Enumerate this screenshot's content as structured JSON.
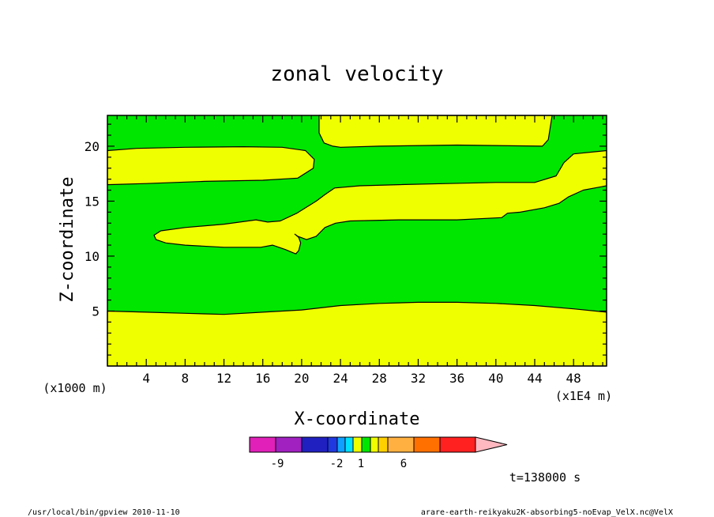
{
  "chart_data": {
    "type": "heatmap",
    "title": "zonal velocity",
    "xlabel": "X-coordinate",
    "ylabel": "Z-coordinate",
    "x_unit": "(x1000 m)",
    "x_scale": "(x1E4 m)",
    "xlim": [
      0,
      51.4
    ],
    "ylim": [
      0,
      22.8
    ],
    "x_ticks": [
      "4",
      "8",
      "12",
      "16",
      "20",
      "24",
      "28",
      "32",
      "36",
      "40",
      "44",
      "48"
    ],
    "y_ticks": [
      "5",
      "10",
      "15",
      "20"
    ],
    "fill_colors": {
      "background": "#00e600",
      "band": "#f0ff00"
    },
    "regions": [
      {
        "name": "top-band",
        "points": [
          [
            21.8,
            22.8
          ],
          [
            45.8,
            22.8
          ],
          [
            45.4,
            20.6
          ],
          [
            44.8,
            20.0
          ],
          [
            36,
            20.1
          ],
          [
            28,
            20.0
          ],
          [
            24,
            19.9
          ],
          [
            23.2,
            20.0
          ],
          [
            22.3,
            20.3
          ],
          [
            21.8,
            21.2
          ]
        ]
      },
      {
        "name": "upper-left-band",
        "points": [
          [
            0,
            19.6
          ],
          [
            3,
            19.8
          ],
          [
            8,
            19.9
          ],
          [
            14,
            19.95
          ],
          [
            18,
            19.9
          ],
          [
            20.4,
            19.6
          ],
          [
            21.3,
            18.8
          ],
          [
            21.2,
            18.0
          ],
          [
            19.6,
            17.1
          ],
          [
            16,
            16.9
          ],
          [
            10,
            16.8
          ],
          [
            4,
            16.6
          ],
          [
            0,
            16.5
          ]
        ]
      },
      {
        "name": "diagonal-band",
        "points": [
          [
            4.8,
            11.9
          ],
          [
            5.5,
            12.3
          ],
          [
            8,
            12.6
          ],
          [
            12,
            12.9
          ],
          [
            15.3,
            13.3
          ],
          [
            16.5,
            13.1
          ],
          [
            17.8,
            13.2
          ],
          [
            19.5,
            13.9
          ],
          [
            21.5,
            15.0
          ],
          [
            22.4,
            15.6
          ],
          [
            23.4,
            16.2
          ],
          [
            26,
            16.4
          ],
          [
            30,
            16.5
          ],
          [
            35,
            16.6
          ],
          [
            40,
            16.7
          ],
          [
            44,
            16.7
          ],
          [
            46.2,
            17.3
          ],
          [
            47,
            18.5
          ],
          [
            48,
            19.3
          ],
          [
            51.4,
            19.6
          ],
          [
            51.4,
            16.4
          ],
          [
            49,
            16.0
          ],
          [
            47.5,
            15.4
          ],
          [
            46.5,
            14.8
          ],
          [
            45.0,
            14.4
          ],
          [
            42.5,
            14.0
          ],
          [
            41.2,
            13.9
          ],
          [
            40.6,
            13.5
          ],
          [
            36,
            13.3
          ],
          [
            30,
            13.3
          ],
          [
            25,
            13.2
          ],
          [
            23.5,
            13.0
          ],
          [
            22.4,
            12.6
          ],
          [
            21.5,
            11.8
          ],
          [
            20.5,
            11.5
          ],
          [
            19.6,
            11.8
          ],
          [
            19.3,
            12.0
          ],
          [
            19.7,
            11.7
          ],
          [
            19.9,
            11.2
          ],
          [
            19.7,
            10.5
          ],
          [
            19.4,
            10.2
          ],
          [
            18.3,
            10.6
          ],
          [
            17.0,
            11.0
          ],
          [
            15.8,
            10.8
          ],
          [
            12,
            10.8
          ],
          [
            8,
            11.0
          ],
          [
            6,
            11.2
          ],
          [
            5.0,
            11.5
          ]
        ]
      },
      {
        "name": "bottom-band",
        "points": [
          [
            0,
            0
          ],
          [
            51.4,
            0
          ],
          [
            51.4,
            4.9
          ],
          [
            48,
            5.2
          ],
          [
            44,
            5.5
          ],
          [
            40,
            5.7
          ],
          [
            36,
            5.8
          ],
          [
            32,
            5.8
          ],
          [
            28,
            5.7
          ],
          [
            24,
            5.5
          ],
          [
            20,
            5.1
          ],
          [
            16,
            4.9
          ],
          [
            12,
            4.7
          ],
          [
            8,
            4.8
          ],
          [
            4,
            4.9
          ],
          [
            0,
            5.0
          ]
        ]
      }
    ],
    "colorbar": {
      "colors": [
        "#e020b8",
        "#a020c0",
        "#2020c0",
        "#2038e0",
        "#10a0ff",
        "#00e0ff",
        "#f0ff00",
        "#00e600",
        "#f0ff00",
        "#ffd000",
        "#ffb040",
        "#ff7000",
        "#ff2020",
        "#ff8080"
      ],
      "extension_color": "#ffb8c0",
      "labels": [
        "-9",
        "-2",
        "1",
        "6"
      ]
    },
    "time_label": "t=138000 s",
    "footer_left": "/usr/local/bin/gpview  2010-11-10",
    "footer_right": "arare-earth-reikyaku2K-absorbing5-noEvap_VelX.nc@VelX"
  }
}
